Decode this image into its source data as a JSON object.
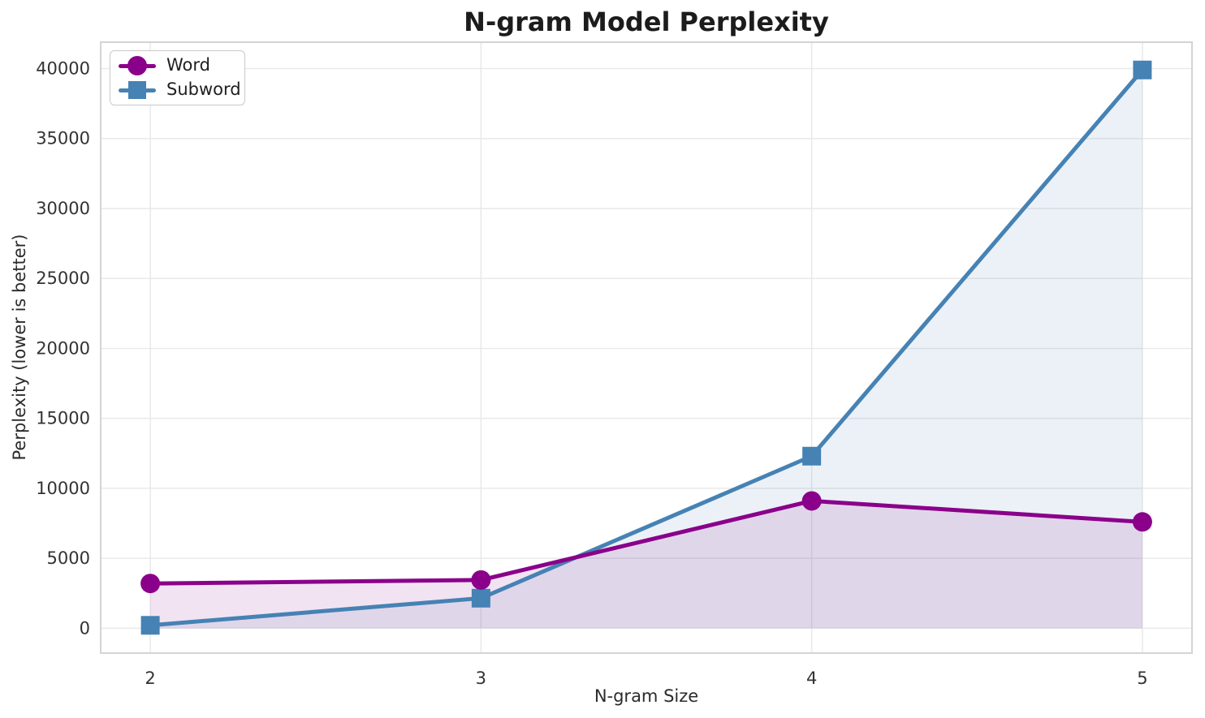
{
  "chart_data": {
    "type": "line",
    "title": "N-gram Model Perplexity",
    "xlabel": "N-gram Size",
    "ylabel": "Perplexity (lower is better)",
    "x": [
      2,
      3,
      4,
      5
    ],
    "x_tick_labels": [
      "2",
      "3",
      "4",
      "5"
    ],
    "y_ticks": [
      0,
      5000,
      10000,
      15000,
      20000,
      25000,
      30000,
      35000,
      40000
    ],
    "series": [
      {
        "name": "Word",
        "marker": "circle",
        "color": "#8A008A",
        "values": [
          3200,
          3450,
          9100,
          7600
        ]
      },
      {
        "name": "Subword",
        "marker": "square",
        "color": "#4682B4",
        "values": [
          210,
          2150,
          12300,
          39900
        ]
      }
    ],
    "draw_order": [
      1,
      0
    ],
    "fill_to_zero": true,
    "fill_alpha": 0.11,
    "grid": true,
    "legend_position": "upper left",
    "legend_entries": [
      "Word",
      "Subword"
    ],
    "line_width": 5,
    "xlim": [
      1.85,
      5.15
    ],
    "ylim": [
      -1775,
      41885
    ]
  },
  "style": {
    "background": "#ffffff",
    "grid_color": "#e9e9e9",
    "spine_color": "#d4d4d4",
    "tick_label_color": "#333333",
    "title_color": "#1c1c1c",
    "axis_label_color": "#2b2b2b"
  }
}
